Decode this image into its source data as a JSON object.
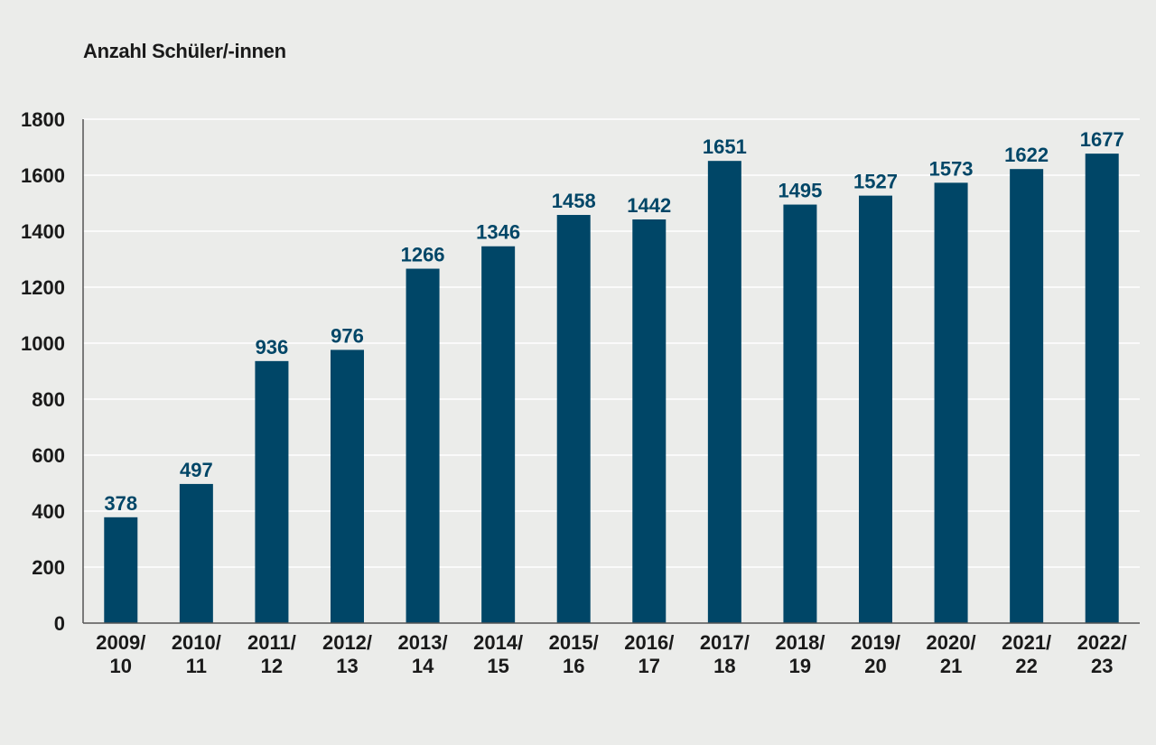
{
  "colors": {
    "background": "#ebecea",
    "bar": "#004667",
    "value_label": "#004667",
    "gridline": "#ffffff",
    "axis": "#555555",
    "text": "#1a1a1a"
  },
  "chart_data": {
    "type": "bar",
    "title": "",
    "ylabel": "Anzahl Schüler/-innen",
    "xlabel": "",
    "ylim": [
      0,
      1800
    ],
    "yticks": [
      0,
      200,
      400,
      600,
      800,
      1000,
      1200,
      1400,
      1600,
      1800
    ],
    "grid": true,
    "categories": [
      [
        "2009/",
        "10"
      ],
      [
        "2010/",
        "11"
      ],
      [
        "2011/",
        "12"
      ],
      [
        "2012/",
        "13"
      ],
      [
        "2013/",
        "14"
      ],
      [
        "2014/",
        "15"
      ],
      [
        "2015/",
        "16"
      ],
      [
        "2016/",
        "17"
      ],
      [
        "2017/",
        "18"
      ],
      [
        "2018/",
        "19"
      ],
      [
        "2019/",
        "20"
      ],
      [
        "2020/",
        "21"
      ],
      [
        "2021/",
        "22"
      ],
      [
        "2022/",
        "23"
      ]
    ],
    "values": [
      378,
      497,
      936,
      976,
      1266,
      1346,
      1458,
      1442,
      1651,
      1495,
      1527,
      1573,
      1622,
      1677
    ],
    "value_labels": [
      "378",
      "497",
      "936",
      "976",
      "1266",
      "1346",
      "1458",
      "1442",
      "1651",
      "1495",
      "1527",
      "1573",
      "1622",
      "1677"
    ]
  }
}
